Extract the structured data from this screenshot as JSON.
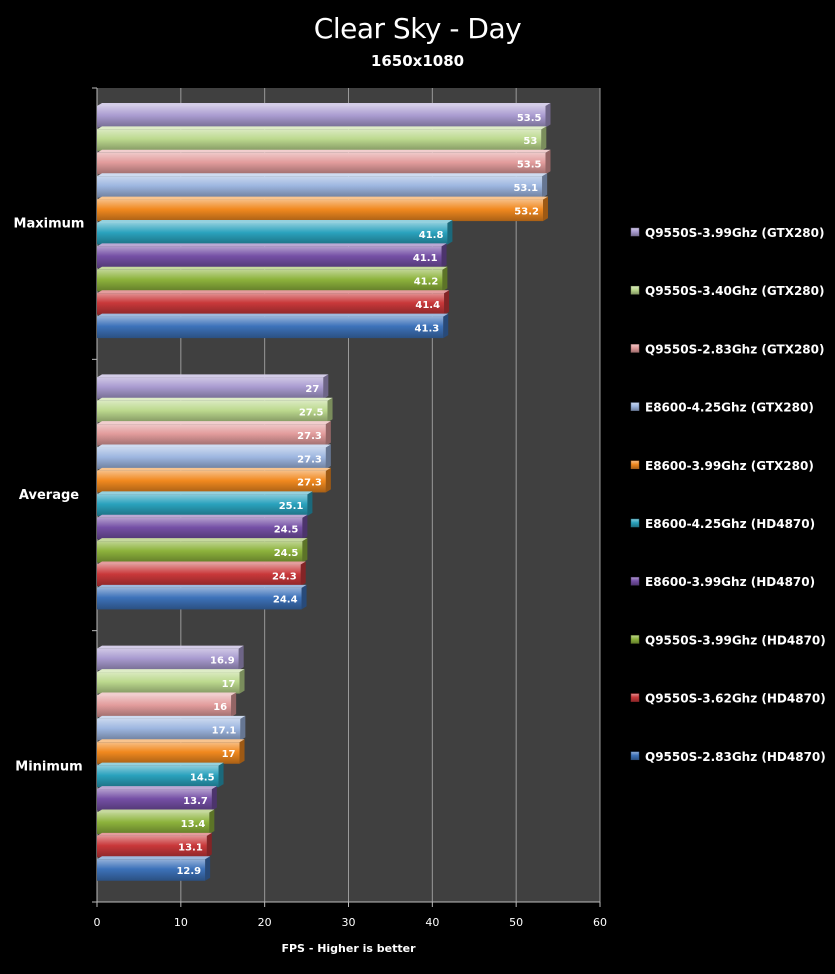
{
  "chart_data": {
    "type": "bar",
    "orientation": "horizontal",
    "title": "Clear Sky - Day",
    "subtitle": "1650x1080",
    "xlabel": "FPS - Higher is better",
    "ylabel": "",
    "xlim": [
      0,
      60
    ],
    "xticks": [
      0,
      10,
      20,
      30,
      40,
      50,
      60
    ],
    "grid": true,
    "legend_position": "right",
    "categories": [
      "Maximum",
      "Average",
      "Minimum"
    ],
    "series": [
      {
        "name": "Q9550S-3.99Ghz (GTX280)",
        "color": "#a99bd0",
        "values": [
          53.5,
          27,
          16.9
        ]
      },
      {
        "name": "Q9550S-3.40Ghz (GTX280)",
        "color": "#bcd98e",
        "values": [
          53,
          27.5,
          17
        ]
      },
      {
        "name": "Q9550S-2.83Ghz (GTX280)",
        "color": "#e29c9c",
        "values": [
          53.5,
          27.3,
          16
        ]
      },
      {
        "name": "E8600-4.25Ghz (GTX280)",
        "color": "#9db6e0",
        "values": [
          53.1,
          27.3,
          17.1
        ]
      },
      {
        "name": "E8600-3.99Ghz (GTX280)",
        "color": "#f1891f",
        "values": [
          53.2,
          27.3,
          17
        ]
      },
      {
        "name": "E8600-4.25Ghz (HD4870)",
        "color": "#2aa2bd",
        "values": [
          41.8,
          25.1,
          14.5
        ]
      },
      {
        "name": "E8600-3.99Ghz (HD4870)",
        "color": "#7550a6",
        "values": [
          41.1,
          24.5,
          13.7
        ]
      },
      {
        "name": "Q9550S-3.99Ghz (HD4870)",
        "color": "#8db33c",
        "values": [
          41.2,
          24.5,
          13.4
        ]
      },
      {
        "name": "Q9550S-3.62Ghz (HD4870)",
        "color": "#c9383a",
        "values": [
          41.4,
          24.3,
          13.1
        ]
      },
      {
        "name": "Q9550S-2.83Ghz (HD4870)",
        "color": "#3d72ba",
        "values": [
          41.3,
          24.4,
          12.9
        ]
      }
    ]
  }
}
